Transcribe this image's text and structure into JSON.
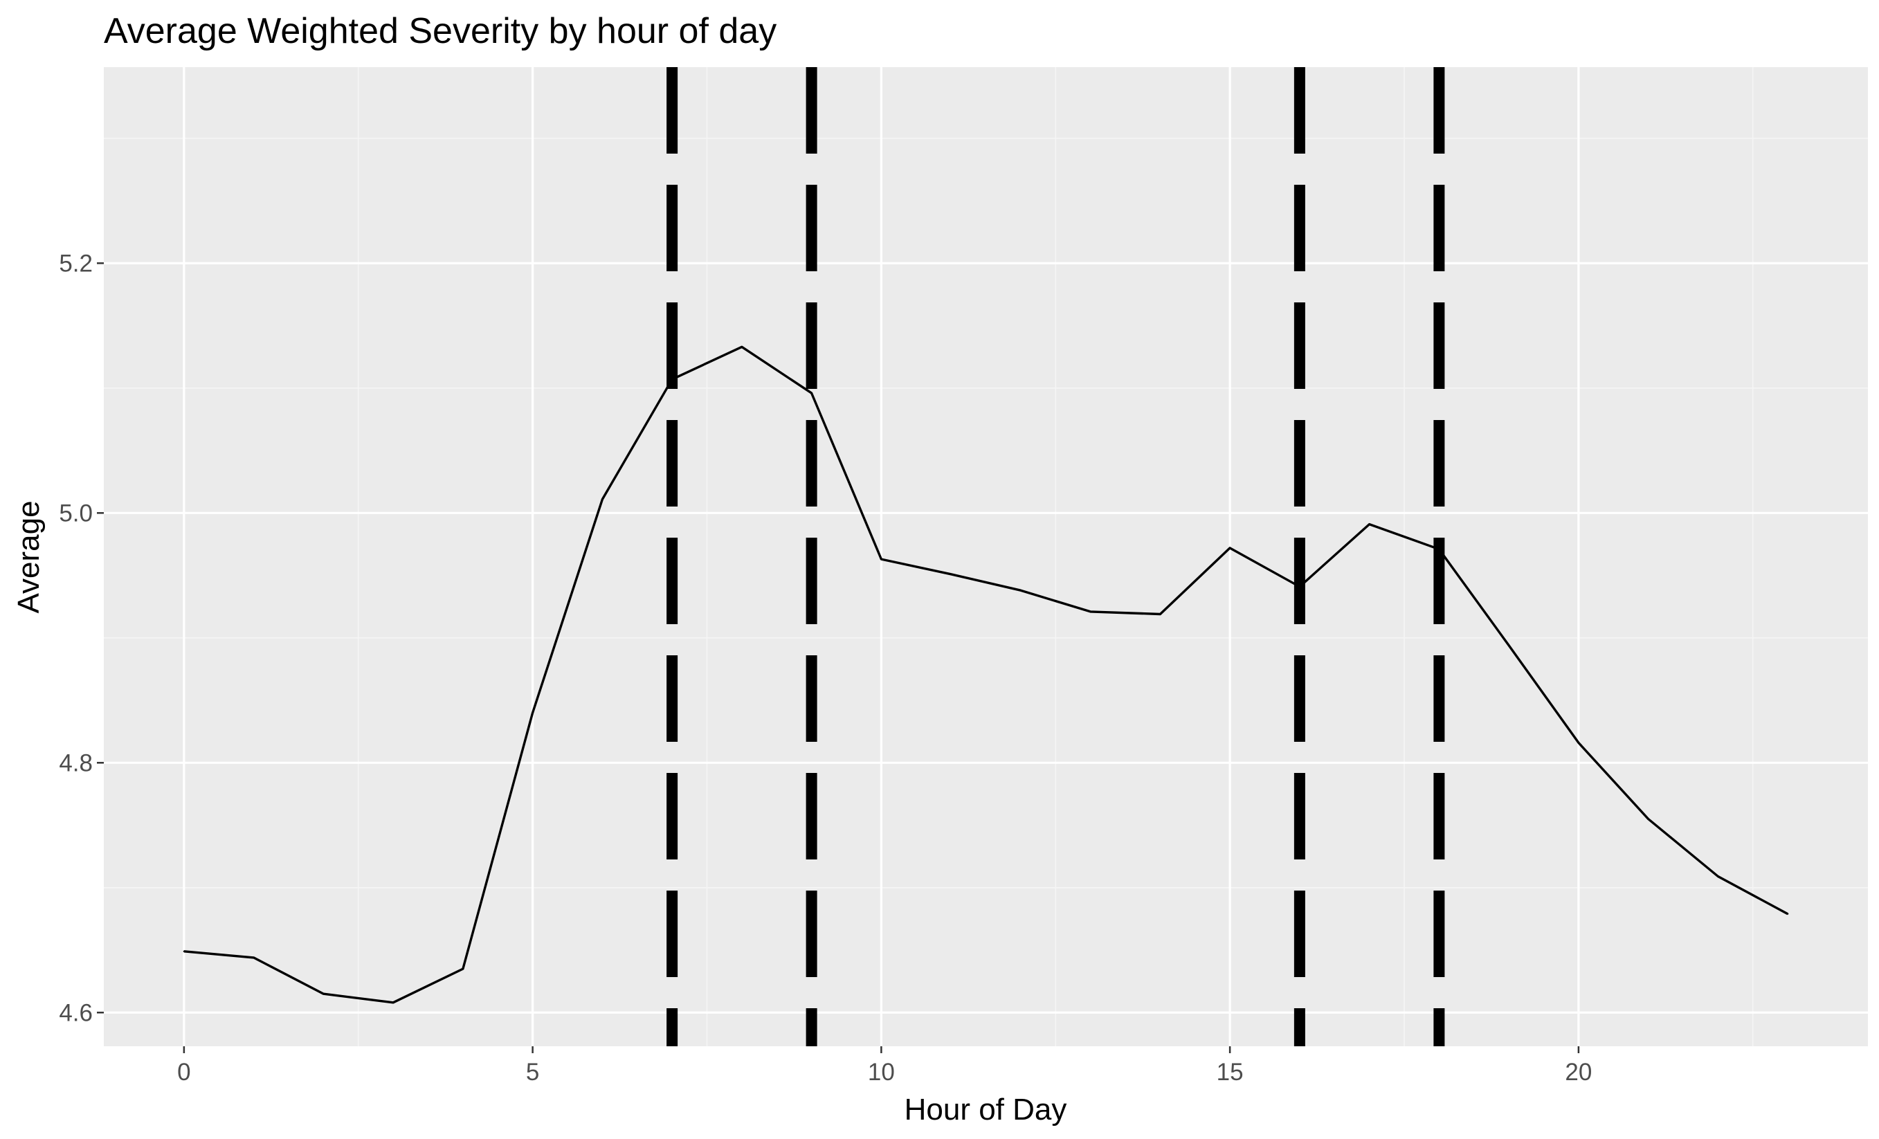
{
  "chart_data": {
    "type": "line",
    "title": "Average Weighted Severity by hour of day",
    "xlabel": "Hour of Day",
    "ylabel": "Average",
    "xlim": [
      -1.15,
      24.15
    ],
    "ylim": [
      4.573,
      5.357
    ],
    "x_ticks": [
      0,
      5,
      10,
      15,
      20
    ],
    "x_tick_labels": [
      "0",
      "5",
      "10",
      "15",
      "20"
    ],
    "x_minor_ticks": [
      2.5,
      7.5,
      12.5,
      17.5,
      22.5
    ],
    "y_ticks": [
      4.6,
      4.8,
      5.0,
      5.2
    ],
    "y_tick_labels": [
      "4.6",
      "4.8",
      "5.0",
      "5.2"
    ],
    "y_minor_ticks": [
      4.7,
      4.9,
      5.1,
      5.3
    ],
    "grid": true,
    "legend": "none",
    "series": [
      {
        "x": [
          0,
          1,
          2,
          3,
          4,
          5,
          6,
          7,
          8,
          9,
          10,
          11,
          12,
          13,
          14,
          15,
          16,
          17,
          18,
          19,
          20,
          21,
          22,
          23
        ],
        "values": [
          4.649,
          4.644,
          4.615,
          4.608,
          4.635,
          4.84,
          5.011,
          5.107,
          5.133,
          5.096,
          4.963,
          4.951,
          4.938,
          4.921,
          4.919,
          4.972,
          4.941,
          4.991,
          4.971,
          4.894,
          4.816,
          4.755,
          4.709,
          4.679
        ],
        "color": "#000000"
      }
    ],
    "vlines": [
      7,
      9,
      16,
      18
    ],
    "vline_style": "dashed",
    "colors": {
      "panel_background": "#EBEBEB",
      "grid_major": "#FFFFFF",
      "grid_minor": "#F5F5F5",
      "line": "#000000",
      "vline": "#000000",
      "tick_label": "#4D4D4D",
      "tick_mark": "#333333"
    }
  }
}
